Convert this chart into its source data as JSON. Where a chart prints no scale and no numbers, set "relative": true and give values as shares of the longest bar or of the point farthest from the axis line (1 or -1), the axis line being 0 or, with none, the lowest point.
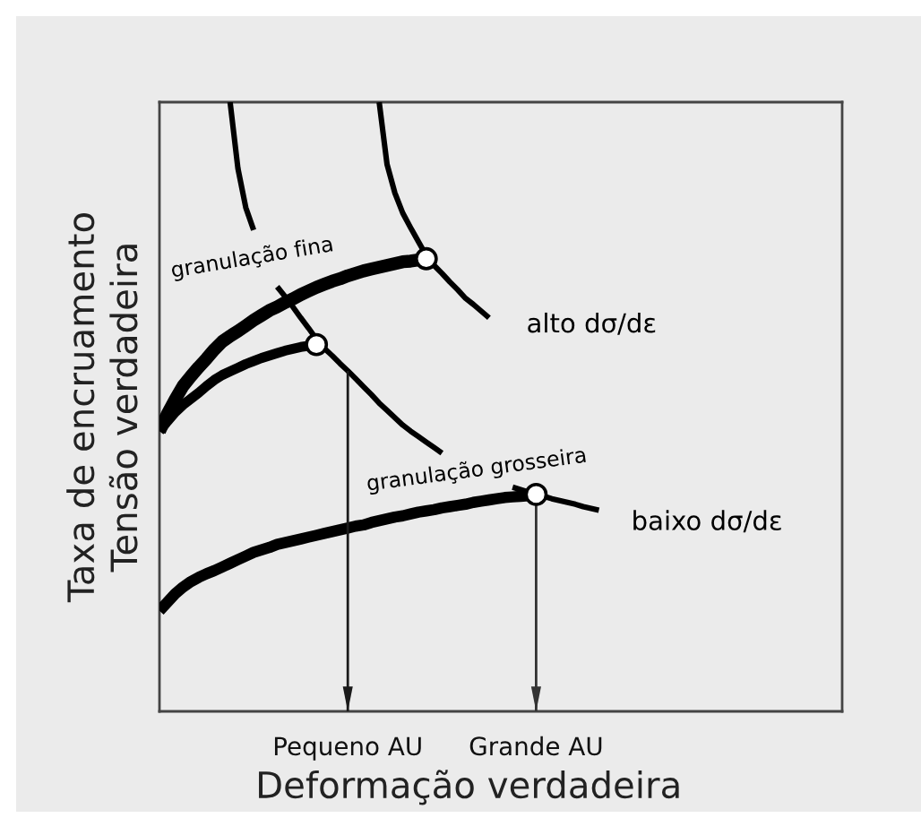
{
  "chart_data": {
    "type": "line",
    "relative": true,
    "xlabel": "Deformação verdadeira",
    "ylabel": "Taxa de encruamento\nTensão verdadeira",
    "categories": [
      null,
      null,
      null,
      null,
      null,
      null,
      null,
      null,
      null,
      null,
      null,
      null,
      null,
      null,
      null,
      null,
      null,
      null,
      null,
      null,
      null,
      null,
      null,
      null,
      "Pequeno AU",
      null,
      null,
      null,
      null,
      null,
      null,
      null,
      null,
      null,
      null,
      null,
      null,
      null,
      null,
      null,
      null,
      null,
      null,
      null,
      null,
      null,
      null,
      null,
      "Grande AU",
      null,
      null,
      null,
      null,
      null,
      null,
      null,
      null,
      null,
      null,
      null,
      null,
      null,
      null,
      null,
      null,
      null,
      null,
      null,
      null,
      null,
      null,
      null,
      null,
      null,
      null,
      null,
      null,
      null,
      null,
      null,
      null,
      null,
      null,
      null,
      null,
      null,
      null,
      null
    ],
    "series": [
      {
        "name": "granulação fina",
        "color": "#000000",
        "values": [
          0.46,
          0.488,
          0.512,
          0.534,
          0.55,
          0.565,
          0.579,
          0.594,
          0.607,
          0.616,
          0.624,
          0.633,
          0.642,
          0.65,
          0.658,
          0.664,
          0.671,
          0.677,
          0.684,
          0.69,
          0.696,
          0.701,
          0.706,
          0.71,
          0.715,
          0.719,
          0.723,
          0.726,
          0.729,
          0.732,
          0.735,
          0.738,
          0.739,
          0.741,
          0.743,
          null,
          null,
          null,
          null,
          null,
          null,
          null,
          null,
          null,
          null,
          null,
          null,
          null,
          null,
          null,
          null,
          null,
          null,
          null,
          null,
          null,
          null,
          null,
          null,
          null,
          null,
          null,
          null,
          null,
          null,
          null,
          null,
          null,
          null,
          null,
          null,
          null,
          null,
          null,
          null,
          null,
          null,
          null,
          null,
          null,
          null,
          null,
          null,
          null,
          null,
          null,
          null,
          null
        ]
      },
      {
        "color": "#000000",
        "values": [
          0.46,
          0.476,
          0.491,
          0.503,
          0.513,
          0.523,
          0.534,
          0.544,
          0.552,
          0.558,
          0.564,
          0.57,
          0.575,
          0.58,
          0.584,
          0.588,
          0.592,
          0.595,
          0.598,
          0.6,
          0.602,
          null,
          null,
          null,
          null,
          null,
          null,
          null,
          null,
          null,
          null,
          null,
          null,
          null,
          null,
          null,
          null,
          null,
          null,
          null,
          null,
          null,
          null,
          null,
          null,
          null,
          null,
          null,
          null,
          null,
          null,
          null,
          null,
          null,
          null,
          null,
          null,
          null,
          null,
          null,
          null,
          null,
          null,
          null,
          null,
          null,
          null,
          null,
          null,
          null,
          null,
          null,
          null,
          null,
          null,
          null,
          null,
          null,
          null,
          null,
          null,
          null,
          null,
          null,
          null,
          null,
          null,
          null
        ]
      },
      {
        "name": "granulação grosseira",
        "color": "#000000",
        "values": [
          0.165,
          0.179,
          0.193,
          0.204,
          0.213,
          0.22,
          0.226,
          0.231,
          0.237,
          0.243,
          0.249,
          0.255,
          0.261,
          0.265,
          0.269,
          0.274,
          0.277,
          0.28,
          0.283,
          0.286,
          0.289,
          0.292,
          0.295,
          0.298,
          0.301,
          0.304,
          0.306,
          0.31,
          0.313,
          0.316,
          0.319,
          0.321,
          0.324,
          0.327,
          0.329,
          0.331,
          0.334,
          0.336,
          0.338,
          0.34,
          0.343,
          0.345,
          0.347,
          0.349,
          0.351,
          0.352,
          0.353,
          0.354,
          0.356,
          null,
          null,
          null,
          null,
          null,
          null,
          null,
          null,
          null,
          null,
          null,
          null,
          null,
          null,
          null,
          null,
          null,
          null,
          null,
          null,
          null,
          null,
          null,
          null,
          null,
          null,
          null,
          null,
          null,
          null,
          null,
          null,
          null,
          null,
          null,
          null,
          null,
          null,
          null
        ]
      },
      {
        "color": "#000000",
        "values": [
          null,
          null,
          null,
          null,
          null,
          null,
          null,
          null,
          null,
          1.0,
          0.891,
          0.827,
          0.79,
          null,
          null,
          0.697,
          0.681,
          0.664,
          0.646,
          0.629,
          0.611,
          0.596,
          0.584,
          0.571,
          0.559,
          0.546,
          0.533,
          0.52,
          0.506,
          0.494,
          0.482,
          0.47,
          0.46,
          0.451,
          0.442,
          0.433,
          0.424,
          null,
          null,
          null,
          null,
          null,
          null,
          null,
          null,
          null,
          null,
          null,
          null,
          null,
          null,
          null,
          null,
          null,
          null,
          null,
          null,
          null,
          null,
          null,
          null,
          null,
          null,
          null,
          null,
          null,
          null,
          null,
          null,
          null,
          null,
          null,
          null,
          null,
          null,
          null,
          null,
          null,
          null,
          null,
          null,
          null,
          null,
          null,
          null,
          null,
          null,
          null
        ]
      },
      {
        "name": "alto dσ/dε",
        "color": "#000000",
        "values": [
          null,
          null,
          null,
          null,
          null,
          null,
          null,
          null,
          null,
          null,
          null,
          null,
          null,
          null,
          null,
          null,
          null,
          null,
          null,
          null,
          null,
          null,
          null,
          null,
          null,
          null,
          null,
          null,
          1.0,
          0.898,
          0.851,
          0.818,
          0.794,
          0.771,
          0.748,
          0.732,
          0.719,
          0.705,
          0.692,
          0.678,
          0.668,
          0.657,
          0.646,
          null,
          null,
          null,
          null,
          null,
          null,
          null,
          null,
          null,
          null,
          null,
          null,
          null,
          null,
          null,
          null,
          null,
          null,
          null,
          null,
          null,
          null,
          null,
          null,
          null,
          null,
          null,
          null,
          null,
          null,
          null,
          null,
          null,
          null,
          null,
          null,
          null,
          null,
          null,
          null,
          null,
          null,
          null,
          null,
          null
        ]
      },
      {
        "name": "baixo dσ/dε",
        "color": "#000000",
        "values": [
          null,
          null,
          null,
          null,
          null,
          null,
          null,
          null,
          null,
          null,
          null,
          null,
          null,
          null,
          null,
          null,
          null,
          null,
          null,
          null,
          null,
          null,
          null,
          null,
          null,
          null,
          null,
          null,
          null,
          null,
          null,
          null,
          null,
          null,
          null,
          null,
          null,
          null,
          null,
          null,
          null,
          null,
          null,
          null,
          null,
          0.368,
          0.364,
          0.36,
          0.356,
          0.353,
          0.349,
          0.346,
          0.343,
          0.34,
          0.336,
          0.333,
          0.33,
          null,
          null,
          null,
          null,
          null,
          null,
          null,
          null,
          null,
          null,
          null,
          null,
          null,
          null,
          null,
          null,
          null,
          null,
          null,
          null,
          null,
          null,
          null,
          null,
          null,
          null,
          null,
          null,
          null,
          null,
          null
        ]
      },
      {
        "type": "scatter",
        "marker": "circle",
        "color": "#000000",
        "values": [
          null,
          null,
          null,
          null,
          null,
          null,
          null,
          null,
          null,
          null,
          null,
          null,
          null,
          null,
          null,
          null,
          null,
          null,
          null,
          null,
          0.602,
          null,
          null,
          null,
          null,
          null,
          null,
          null,
          null,
          null,
          null,
          null,
          null,
          null,
          0.743,
          null,
          null,
          null,
          null,
          null,
          null,
          null,
          null,
          null,
          null,
          null,
          null,
          null,
          0.356,
          null,
          null,
          null,
          null,
          null,
          null,
          null,
          null,
          null,
          null,
          null,
          null,
          null,
          null,
          null,
          null,
          null,
          null,
          null,
          null,
          null,
          null,
          null,
          null,
          null,
          null,
          null,
          null,
          null,
          null,
          null,
          null,
          null,
          null,
          null,
          null,
          null,
          null,
          null
        ]
      },
      {
        "type": "line",
        "color": "#1a1a1a",
        "x": [
          "Pequeno AU",
          "Pequeno AU"
        ],
        "values": [
          0,
          0.559
        ]
      },
      {
        "type": "line",
        "color": "#333333",
        "x": [
          "Grande AU",
          "Grande AU"
        ],
        "values": [
          0,
          0.356
        ]
      }
    ]
  }
}
